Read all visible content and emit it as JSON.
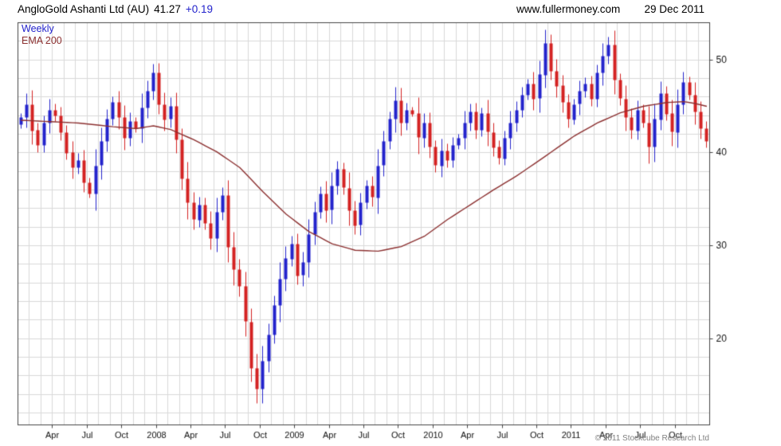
{
  "header": {
    "title": "AngloGold Ashanti Ltd (AU)",
    "price": "41.27",
    "change": "+0.19",
    "site": "www.fullermoney.com",
    "date": "29 Dec 2011"
  },
  "legend": {
    "timeframe": "Weekly",
    "overlay": "EMA 200"
  },
  "footer": {
    "copyright": "© 2011 Stockcube Research Ltd"
  },
  "colors": {
    "up": "#2323cc",
    "down": "#d42222",
    "ema": "#8c3030",
    "grid": "#d9d9d9",
    "axis": "#444444",
    "text": "#111111"
  },
  "chart_data": {
    "type": "candlestick",
    "title": "AngloGold Ashanti Ltd (AU)",
    "interval": "Weekly",
    "overlay": "EMA 200",
    "last_price": 41.27,
    "change": 0.19,
    "x_range": {
      "start": "Jan 2007",
      "end": "Dec 2011",
      "months": 60
    },
    "ylim": [
      10.7,
      54.0
    ],
    "y_grid_step": 2,
    "y_ticks": [
      {
        "value": 50,
        "label": "50"
      },
      {
        "value": 40,
        "label": "40"
      },
      {
        "value": 30,
        "label": "30"
      },
      {
        "value": 20,
        "label": "20"
      }
    ],
    "x_ticks": [
      {
        "month": 3,
        "label": "Apr"
      },
      {
        "month": 6,
        "label": "Jul"
      },
      {
        "month": 9,
        "label": "Oct"
      },
      {
        "month": 12,
        "label": "2008"
      },
      {
        "month": 15,
        "label": "Apr"
      },
      {
        "month": 18,
        "label": "Jul"
      },
      {
        "month": 21,
        "label": "Oct"
      },
      {
        "month": 24,
        "label": "2009"
      },
      {
        "month": 27,
        "label": "Apr"
      },
      {
        "month": 30,
        "label": "Jul"
      },
      {
        "month": 33,
        "label": "Oct"
      },
      {
        "month": 36,
        "label": "2010"
      },
      {
        "month": 39,
        "label": "Apr"
      },
      {
        "month": 42,
        "label": "Jul"
      },
      {
        "month": 45,
        "label": "Oct"
      },
      {
        "month": 48,
        "label": "2011"
      },
      {
        "month": 51,
        "label": "Apr"
      },
      {
        "month": 54,
        "label": "Jul"
      },
      {
        "month": 57,
        "label": "Oct"
      }
    ],
    "points_per_month": 2,
    "closes": [
      43.8,
      45.2,
      42.4,
      40.8,
      43.2,
      44.6,
      44.0,
      42.2,
      40.0,
      38.4,
      39.2,
      36.8,
      35.6,
      38.6,
      41.2,
      43.6,
      45.4,
      43.8,
      41.6,
      43.4,
      42.6,
      44.8,
      46.6,
      48.6,
      45.2,
      43.6,
      45.0,
      41.4,
      37.2,
      34.6,
      32.8,
      34.4,
      32.4,
      30.8,
      33.6,
      35.4,
      29.8,
      27.4,
      25.6,
      21.8,
      16.8,
      14.6,
      17.6,
      20.4,
      23.6,
      26.4,
      28.6,
      30.2,
      26.8,
      28.2,
      31.2,
      33.6,
      35.6,
      33.8,
      36.4,
      38.2,
      36.2,
      33.8,
      32.2,
      34.6,
      36.4,
      35.2,
      38.6,
      41.2,
      43.6,
      45.6,
      43.2,
      44.6,
      44.2,
      41.6,
      43.2,
      40.6,
      38.6,
      40.2,
      39.2,
      40.8,
      41.6,
      43.2,
      44.4,
      42.4,
      44.2,
      42.2,
      40.6,
      39.4,
      41.6,
      43.2,
      44.6,
      46.2,
      47.4,
      45.8,
      48.4,
      51.8,
      48.8,
      47.2,
      45.4,
      43.6,
      45.2,
      46.6,
      47.4,
      45.8,
      48.6,
      50.4,
      51.6,
      47.8,
      45.8,
      43.8,
      42.4,
      44.6,
      43.2,
      40.6,
      43.6,
      46.4,
      44.2,
      42.2,
      45.2,
      47.6,
      46.2,
      44.4,
      42.6,
      41.27
    ],
    "ema_anchors": [
      [
        0,
        43.5
      ],
      [
        10,
        43.2
      ],
      [
        16,
        42.8
      ],
      [
        20,
        42.6
      ],
      [
        23,
        42.9
      ],
      [
        26,
        42.5
      ],
      [
        30,
        41.4
      ],
      [
        34,
        40.1
      ],
      [
        38,
        38.4
      ],
      [
        42,
        35.8
      ],
      [
        46,
        33.4
      ],
      [
        50,
        31.5
      ],
      [
        54,
        30.2
      ],
      [
        58,
        29.5
      ],
      [
        62,
        29.4
      ],
      [
        66,
        29.9
      ],
      [
        70,
        31.0
      ],
      [
        74,
        32.8
      ],
      [
        78,
        34.4
      ],
      [
        82,
        36.0
      ],
      [
        86,
        37.5
      ],
      [
        90,
        39.2
      ],
      [
        93,
        40.5
      ],
      [
        96,
        41.8
      ],
      [
        100,
        43.2
      ],
      [
        104,
        44.3
      ],
      [
        108,
        45.0
      ],
      [
        112,
        45.4
      ],
      [
        115,
        45.5
      ],
      [
        117,
        45.3
      ],
      [
        119,
        45.0
      ]
    ]
  }
}
